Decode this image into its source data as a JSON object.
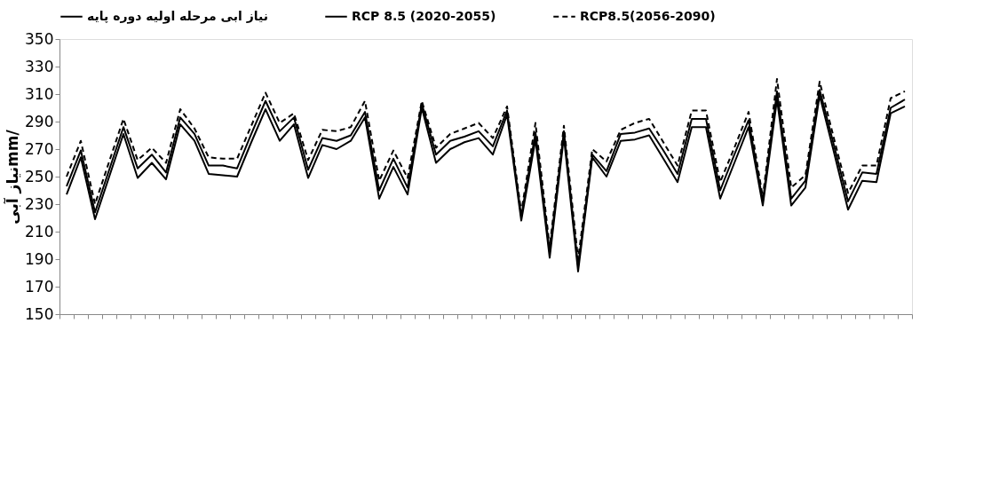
{
  "chart_data": {
    "type": "line",
    "ylabel": "نیاز آبیmm/",
    "categories": [
      null,
      null,
      null,
      null,
      null,
      null,
      null,
      null,
      null,
      null,
      null,
      null,
      null,
      null,
      null,
      null,
      null,
      null,
      null,
      null,
      null,
      null,
      null,
      null,
      null,
      null,
      null,
      null,
      null,
      null,
      null,
      null,
      null,
      null,
      null,
      null,
      null,
      null,
      null,
      null,
      null,
      null,
      null,
      null,
      null,
      null,
      null,
      null,
      null,
      null,
      null,
      null,
      null,
      null,
      null,
      null,
      null,
      null,
      null,
      null
    ],
    "series": [
      {
        "name": "نیاز ابی مرحله اولیه دوره پایه",
        "color": "#000000",
        "line_style": "solid",
        "values": [
          237,
          264,
          219,
          250,
          281,
          249,
          260,
          248,
          288,
          276,
          252,
          251,
          250,
          275,
          299,
          276,
          288,
          249,
          273,
          270,
          276,
          293,
          234,
          257,
          237,
          300,
          260,
          270,
          275,
          278,
          266,
          295,
          218,
          277,
          191,
          279,
          181,
          264,
          250,
          276,
          277,
          280,
          263,
          246,
          286,
          286,
          234,
          260,
          286,
          229,
          306,
          229,
          242,
          309,
          268,
          226,
          247,
          246,
          296,
          301
        ]
      },
      {
        "name": "RCP 8.5 (2020-2055)",
        "color": "#000000",
        "line_style": "solid",
        "values": [
          243,
          269,
          224,
          255,
          286,
          256,
          266,
          253,
          293,
          281,
          258,
          258,
          256,
          281,
          305,
          283,
          293,
          255,
          278,
          276,
          280,
          297,
          240,
          263,
          242,
          303,
          266,
          276,
          279,
          283,
          272,
          298,
          221,
          282,
          195,
          283,
          185,
          266,
          254,
          281,
          282,
          285,
          269,
          252,
          292,
          292,
          240,
          266,
          291,
          232,
          312,
          234,
          247,
          313,
          273,
          232,
          253,
          252,
          300,
          306
        ]
      },
      {
        "name": "RCP8.5(2056-2090)",
        "color": "#000000",
        "line_style": "dashed",
        "values": [
          250,
          276,
          230,
          261,
          292,
          262,
          271,
          260,
          299,
          285,
          264,
          263,
          263,
          287,
          311,
          289,
          296,
          262,
          284,
          283,
          286,
          305,
          247,
          269,
          249,
          305,
          271,
          281,
          285,
          289,
          278,
          301,
          224,
          289,
          199,
          287,
          190,
          270,
          261,
          284,
          289,
          292,
          275,
          258,
          298,
          298,
          246,
          271,
          297,
          235,
          321,
          242,
          251,
          319,
          278,
          238,
          258,
          258,
          307,
          312
        ]
      }
    ],
    "ylim": [
      150,
      350
    ],
    "yticks": [
      150,
      170,
      190,
      210,
      230,
      250,
      270,
      290,
      310,
      330,
      350
    ],
    "grid": false,
    "legend": "top",
    "marker": "none"
  }
}
